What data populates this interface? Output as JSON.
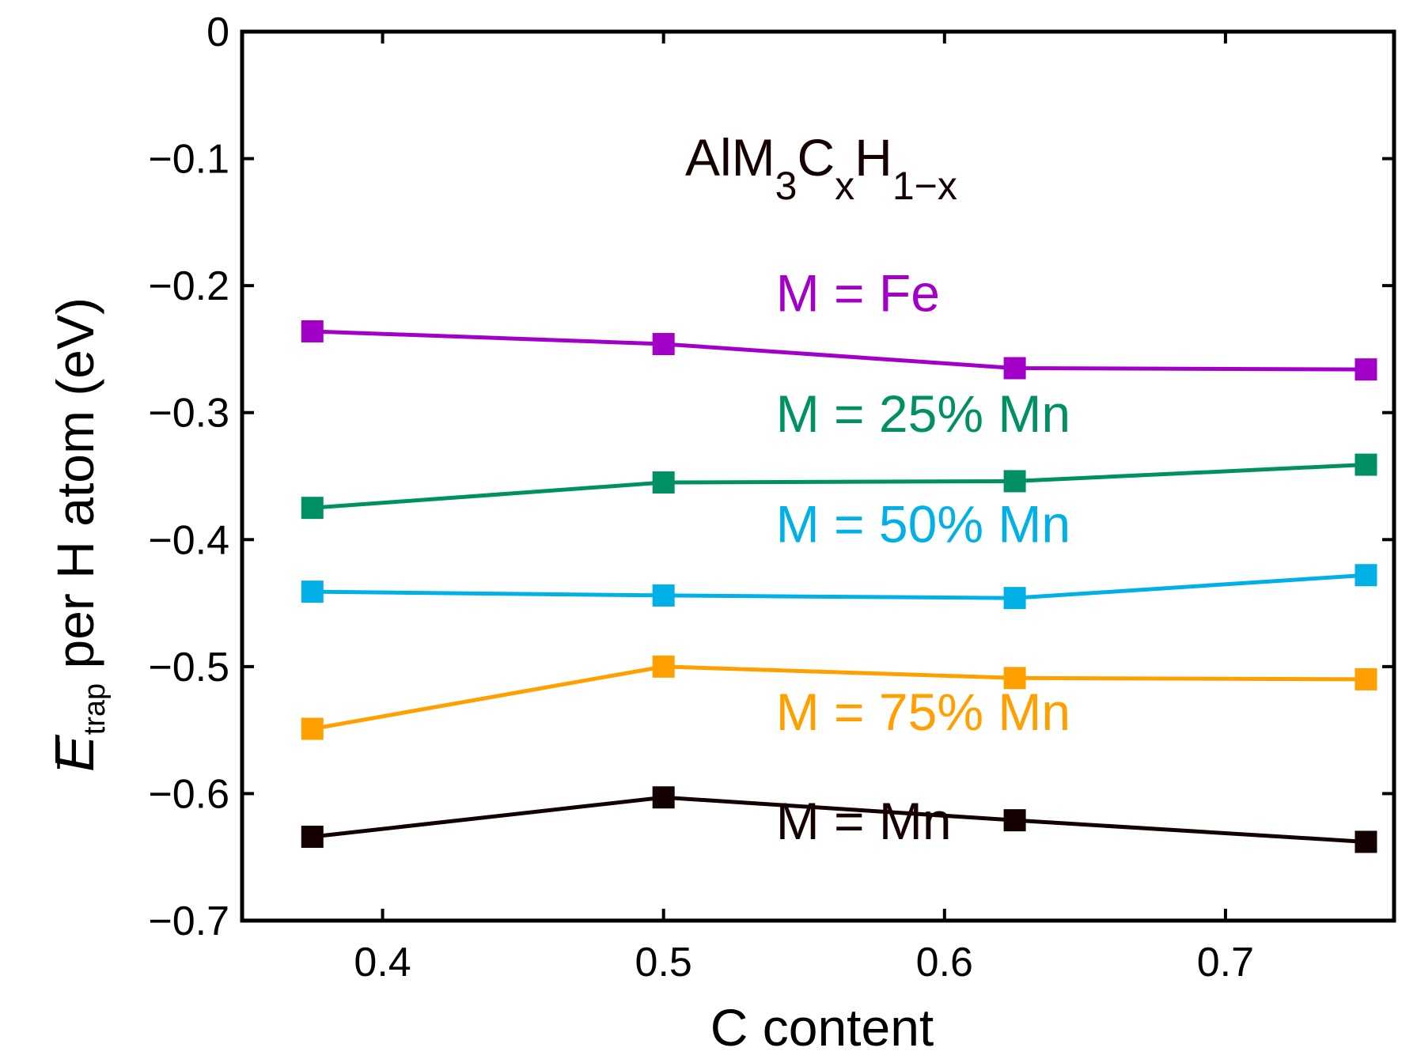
{
  "chart_data": {
    "type": "line",
    "title": "",
    "xlabel": "C content",
    "ylabel": {
      "symbol": "E",
      "subscript": "trap",
      "rest": " per H atom (eV)"
    },
    "formula": {
      "parts": [
        {
          "text": "AlM",
          "sub": false
        },
        {
          "text": "3",
          "sub": true
        },
        {
          "text": "C",
          "sub": false
        },
        {
          "text": "x",
          "sub": true
        },
        {
          "text": "H",
          "sub": false
        },
        {
          "text": "1−x",
          "sub": true
        }
      ]
    },
    "xlim": [
      0.35,
      0.76
    ],
    "ylim": [
      -0.7,
      0
    ],
    "xticks": [
      0.4,
      0.5,
      0.6,
      0.7
    ],
    "xtick_labels": [
      "0.4",
      "0.5",
      "0.6",
      "0.7"
    ],
    "yticks": [
      0,
      -0.1,
      -0.2,
      -0.3,
      -0.4,
      -0.5,
      -0.6,
      -0.7
    ],
    "ytick_labels": [
      "0",
      "−0.1",
      "−0.2",
      "−0.3",
      "−0.4",
      "−0.5",
      "−0.6",
      "−0.7"
    ],
    "grid": false,
    "x": [
      0.375,
      0.5,
      0.625,
      0.75
    ],
    "series": [
      {
        "name": "M = Fe",
        "color": "#a200c8",
        "values": [
          -0.236,
          -0.246,
          -0.265,
          -0.266
        ],
        "label_at": [
          0.54,
          -0.22
        ]
      },
      {
        "name": "M = 25% Mn",
        "color": "#009064",
        "values": [
          -0.375,
          -0.355,
          -0.354,
          -0.341
        ],
        "label_at": [
          0.54,
          -0.315
        ]
      },
      {
        "name": "M = 50% Mn",
        "color": "#00b0e6",
        "values": [
          -0.441,
          -0.444,
          -0.446,
          -0.428
        ],
        "label_at": [
          0.54,
          -0.402
        ]
      },
      {
        "name": "M = 75% Mn",
        "color": "#ffa000",
        "values": [
          -0.549,
          -0.5,
          -0.509,
          -0.51
        ],
        "label_at": [
          0.54,
          -0.55
        ]
      },
      {
        "name": "M = Mn",
        "color": "#140000",
        "values": [
          -0.634,
          -0.603,
          -0.621,
          -0.638
        ],
        "label_at": [
          0.54,
          -0.636
        ]
      }
    ]
  }
}
